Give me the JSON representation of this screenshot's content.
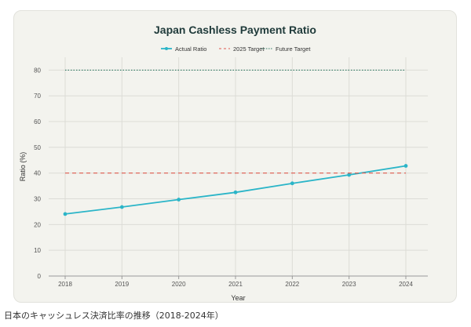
{
  "chart_data": {
    "type": "line",
    "title": "Japan Cashless Payment Ratio",
    "xlabel": "Year",
    "ylabel": "Ratio (%)",
    "categories": [
      "2018",
      "2019",
      "2020",
      "2021",
      "2022",
      "2023",
      "2024"
    ],
    "ylim": [
      0,
      85
    ],
    "yticks": [
      0,
      10,
      20,
      30,
      40,
      50,
      60,
      70,
      80
    ],
    "grid": true,
    "legend_position": "top-center",
    "series": [
      {
        "name": "Actual Ratio",
        "values": [
          24.1,
          26.8,
          29.7,
          32.5,
          36.0,
          39.3,
          42.8
        ],
        "color": "#2bb5c8",
        "style": "solid-with-markers"
      },
      {
        "name": "2025 Target",
        "values": [
          40,
          40,
          40,
          40,
          40,
          40,
          40
        ],
        "color": "#e05a4f",
        "style": "dashed"
      },
      {
        "name": "Future Target",
        "values": [
          80,
          80,
          80,
          80,
          80,
          80,
          80
        ],
        "color": "#2f7a63",
        "style": "dotted"
      }
    ]
  },
  "caption": "日本のキャッシュレス決済比率の推移（2018-2024年）"
}
